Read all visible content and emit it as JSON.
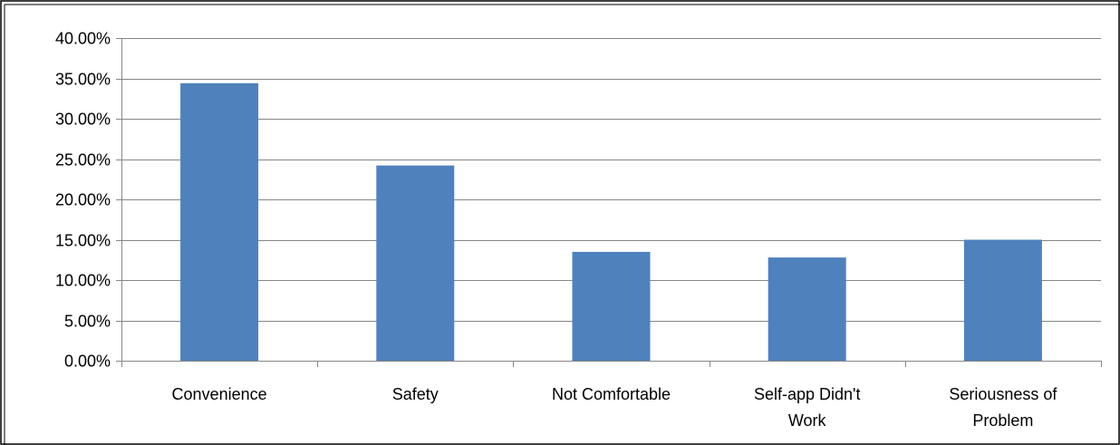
{
  "chart_data": {
    "type": "bar",
    "title": "",
    "xlabel": "",
    "ylabel": "",
    "categories": [
      [
        "Convenience"
      ],
      [
        "Safety"
      ],
      [
        "Not Comfortable"
      ],
      [
        "Self-app Didn't",
        "Work"
      ],
      [
        "Seriousness of",
        "Problem"
      ]
    ],
    "values": [
      34.4,
      24.2,
      13.5,
      12.8,
      15.0
    ],
    "ylim": [
      0,
      40
    ],
    "yticks": [
      "0.00%",
      "5.00%",
      "10.00%",
      "15.00%",
      "20.00%",
      "25.00%",
      "30.00%",
      "35.00%",
      "40.00%"
    ],
    "ytick_values": [
      0,
      5,
      10,
      15,
      20,
      25,
      30,
      35,
      40
    ],
    "grid": true,
    "legend": "none",
    "colors": {
      "bar": "#4f81bd",
      "grid": "#868686",
      "axis": "#868686",
      "frame": "#000000"
    }
  }
}
